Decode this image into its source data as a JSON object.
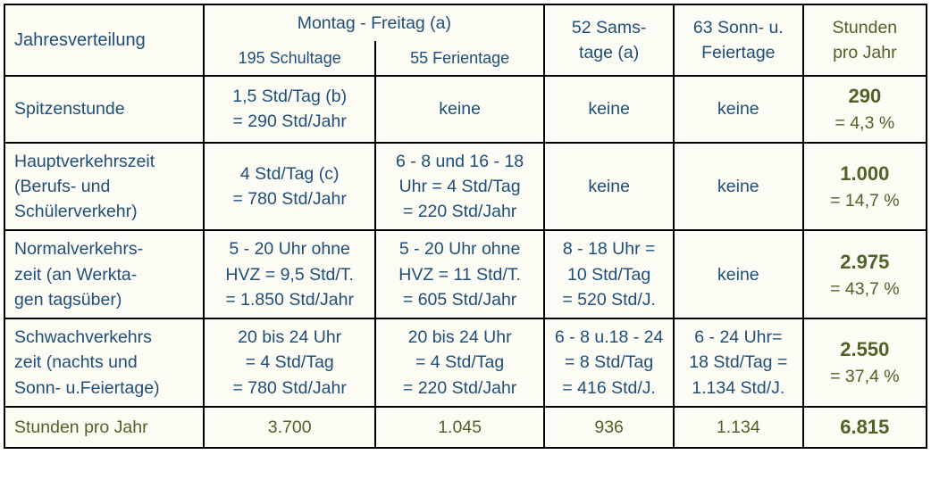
{
  "header": {
    "jahresverteilung": "Jahresverteilung",
    "mon_fri": "Montag - Freitag (a)",
    "schultage": "195 Schultage",
    "ferientage": "55 Ferientage",
    "samstage": "52 Sams-\ntage (a)",
    "sonntage": "63 Sonn- u.\nFeiertage",
    "stunden": "Stunden\npro Jahr"
  },
  "rows": [
    {
      "label": "Spitzenstunde",
      "c1": "1,5 Std/Tag (b)\n= 290 Std/Jahr",
      "c2": "keine",
      "c3": "keine",
      "c4": "keine",
      "sum_big": "290",
      "sum_pct": "= 4,3 %"
    },
    {
      "label": "Hauptverkehrszeit\n(Berufs- und\nSchülerverkehr)",
      "c1": "4 Std/Tag (c)\n= 780 Std/Jahr",
      "c2": "6 - 8 und 16 - 18\nUhr = 4 Std/Tag\n= 220 Std/Jahr",
      "c3": "keine",
      "c4": "keine",
      "sum_big": "1.000",
      "sum_pct": "= 14,7 %"
    },
    {
      "label": "Normalverkehrs-\nzeit (an Werkta-\ngen tagsüber)",
      "c1": "5 - 20 Uhr ohne\nHVZ = 9,5 Std/T.\n= 1.850 Std/Jahr",
      "c2": "5 - 20 Uhr ohne\nHVZ = 11 Std/T.\n= 605 Std/Jahr",
      "c3": "8 - 18 Uhr =\n10 Std/Tag\n= 520 Std/J.",
      "c4": "keine",
      "sum_big": "2.975",
      "sum_pct": "= 43,7 %"
    },
    {
      "label": "Schwachverkehrs\nzeit (nachts und\nSonn- u.Feiertage)",
      "c1": "20 bis 24 Uhr\n= 4 Std/Tag\n= 780 Std/Jahr",
      "c2": "20 bis 24 Uhr\n= 4 Std/Tag\n= 220 Std/Jahr",
      "c3": "6 - 8 u.18 - 24\n= 8 Std/Tag\n= 416 Std/J.",
      "c4": "6 - 24 Uhr=\n18 Std/Tag =\n1.134 Std/J.",
      "sum_big": "2.550",
      "sum_pct": "= 37,4 %"
    }
  ],
  "footer": {
    "label": "Stunden pro Jahr",
    "c1": "3.700",
    "c2": "1.045",
    "c3": "936",
    "c4": "1.134",
    "total": "6.815"
  },
  "style": {
    "colwidths": [
      "210px",
      "180px",
      "178px",
      "136px",
      "136px",
      "130px"
    ]
  }
}
